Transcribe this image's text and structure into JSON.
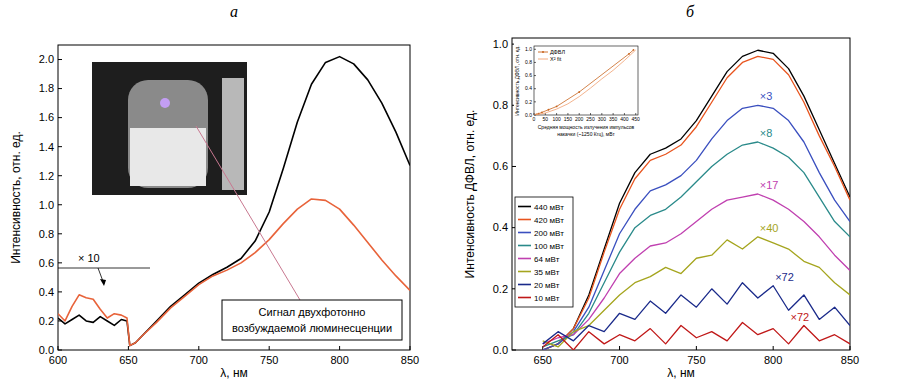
{
  "chart_data": [
    {
      "type": "line",
      "title": "а",
      "x_label": "λ, нм",
      "y_label": "Интенсивность, отн. ед.",
      "x": [
        600,
        605,
        610,
        615,
        620,
        625,
        630,
        635,
        640,
        645,
        649,
        651,
        655,
        660,
        670,
        680,
        690,
        700,
        710,
        720,
        730,
        740,
        750,
        760,
        770,
        780,
        790,
        800,
        810,
        820,
        830,
        840,
        850
      ],
      "series": [
        {
          "color": "#000000",
          "values": [
            0.22,
            0.18,
            0.21,
            0.24,
            0.2,
            0.19,
            0.23,
            0.2,
            0.17,
            0.21,
            0.2,
            0.03,
            0.05,
            0.1,
            0.2,
            0.3,
            0.38,
            0.46,
            0.52,
            0.57,
            0.63,
            0.75,
            0.95,
            1.25,
            1.57,
            1.83,
            1.98,
            2.02,
            1.97,
            1.86,
            1.7,
            1.5,
            1.27
          ]
        },
        {
          "color": "#e8633a",
          "values": [
            0.25,
            0.2,
            0.3,
            0.38,
            0.36,
            0.35,
            0.28,
            0.22,
            0.25,
            0.24,
            0.22,
            0.03,
            0.05,
            0.1,
            0.19,
            0.29,
            0.37,
            0.45,
            0.51,
            0.55,
            0.6,
            0.67,
            0.76,
            0.87,
            0.97,
            1.04,
            1.03,
            0.97,
            0.86,
            0.74,
            0.62,
            0.51,
            0.41
          ]
        }
      ],
      "xlim": [
        600,
        850
      ],
      "xticks": [
        600,
        650,
        700,
        750,
        800,
        850
      ],
      "ylim": [
        0,
        2.1
      ],
      "yticks": [
        {
          "value": 0,
          "label": "0.0"
        },
        0.2,
        0.4,
        0.6,
        0.8,
        {
          "value": 1,
          "label": "1.0"
        },
        1.2,
        1.4,
        1.6,
        1.8,
        {
          "value": 2,
          "label": "2.0"
        }
      ],
      "annotations": [
        {
          "text": "× 10"
        },
        {
          "text": "Сигнал двухфотонно возбуждаемой люминесценции"
        }
      ]
    },
    {
      "type": "line",
      "title": "б",
      "x_label": "λ, нм",
      "y_label": "Интенсивность ДФВЛ, отн. ед.",
      "x": [
        650,
        660,
        670,
        680,
        690,
        700,
        710,
        720,
        730,
        740,
        750,
        760,
        770,
        780,
        790,
        800,
        810,
        820,
        830,
        840,
        850
      ],
      "series": [
        {
          "name": "440 мВт",
          "color": "#000000",
          "values": [
            0.0,
            0.02,
            0.07,
            0.18,
            0.33,
            0.48,
            0.58,
            0.64,
            0.66,
            0.69,
            0.75,
            0.83,
            0.91,
            0.96,
            0.98,
            0.97,
            0.92,
            0.83,
            0.72,
            0.61,
            0.5
          ]
        },
        {
          "name": "420 мВт",
          "color": "#e8541e",
          "values": [
            0.0,
            0.02,
            0.07,
            0.17,
            0.32,
            0.46,
            0.56,
            0.62,
            0.64,
            0.67,
            0.73,
            0.81,
            0.89,
            0.94,
            0.96,
            0.95,
            0.9,
            0.81,
            0.7,
            0.6,
            0.49
          ]
        },
        {
          "name": "200 мВт",
          "color": "#3a4fbf",
          "annotation": "×3",
          "values": [
            0.0,
            0.02,
            0.06,
            0.14,
            0.26,
            0.38,
            0.46,
            0.52,
            0.54,
            0.57,
            0.62,
            0.69,
            0.75,
            0.79,
            0.8,
            0.79,
            0.75,
            0.68,
            0.58,
            0.49,
            0.42
          ]
        },
        {
          "name": "100 мВт",
          "color": "#2a8a8a",
          "annotation": "×8",
          "values": [
            0.01,
            0.03,
            0.05,
            0.12,
            0.22,
            0.32,
            0.4,
            0.44,
            0.46,
            0.5,
            0.55,
            0.6,
            0.64,
            0.67,
            0.68,
            0.66,
            0.63,
            0.58,
            0.5,
            0.42,
            0.37
          ]
        },
        {
          "name": "64 мВт",
          "color": "#c040b0",
          "annotation": "×17",
          "values": [
            0.02,
            0.04,
            0.05,
            0.1,
            0.17,
            0.25,
            0.3,
            0.34,
            0.35,
            0.38,
            0.42,
            0.46,
            0.49,
            0.5,
            0.51,
            0.49,
            0.46,
            0.42,
            0.37,
            0.31,
            0.26
          ]
        },
        {
          "name": "35 мВт",
          "color": "#a5a51e",
          "annotation": "×40",
          "values": [
            0.03,
            0.01,
            0.06,
            0.08,
            0.13,
            0.18,
            0.22,
            0.24,
            0.27,
            0.25,
            0.3,
            0.31,
            0.36,
            0.33,
            0.37,
            0.35,
            0.33,
            0.29,
            0.27,
            0.22,
            0.18
          ]
        },
        {
          "name": "20 мВт",
          "color": "#1a2a8a",
          "annotation": "×72",
          "values": [
            0.02,
            0.06,
            0.03,
            0.08,
            0.06,
            0.12,
            0.1,
            0.16,
            0.12,
            0.18,
            0.14,
            0.2,
            0.15,
            0.22,
            0.17,
            0.21,
            0.13,
            0.18,
            0.1,
            0.14,
            0.08
          ]
        },
        {
          "name": "10 мВт",
          "color": "#c01818",
          "annotation": "×72",
          "values": [
            0.01,
            0.05,
            0.0,
            0.06,
            0.02,
            0.05,
            0.03,
            0.07,
            0.02,
            0.08,
            0.04,
            0.06,
            0.03,
            0.09,
            0.05,
            0.07,
            0.02,
            0.08,
            0.03,
            0.05,
            0.02
          ]
        }
      ],
      "xlim": [
        630,
        850
      ],
      "xticks": [
        650,
        700,
        750,
        800,
        850
      ],
      "ylim": [
        0,
        1.02
      ],
      "yticks": [
        {
          "value": 0,
          "label": "0.0"
        },
        0.2,
        0.4,
        0.6,
        0.8,
        {
          "value": 1,
          "label": "1.0"
        }
      ],
      "legend": "lower left",
      "inset": {
        "type": "line",
        "x_label": "Средняя мощность излучения импульсов накачки (~1250 Кгц), мВт",
        "y_label": "Интенсивность ДФВЛ, отн. ед.",
        "series": [
          {
            "name": "ДФВЛ",
            "color": "#c8641e",
            "marker": "circle",
            "x": [
              10,
              20,
              35,
              64,
              100,
              200,
              420,
              440
            ],
            "values": [
              0.01,
              0.02,
              0.04,
              0.08,
              0.13,
              0.35,
              0.93,
              0.99
            ]
          },
          {
            "name": "X² fit",
            "color": "#f0a070",
            "x": [
              0,
              50,
              100,
              150,
              200,
              250,
              300,
              350,
              400,
              450
            ],
            "values": [
              0,
              0.03,
              0.09,
              0.17,
              0.28,
              0.41,
              0.55,
              0.68,
              0.83,
              0.99
            ]
          }
        ],
        "xlim": [
          0,
          460
        ],
        "xticks": [
          0,
          50,
          100,
          150,
          200,
          250,
          300,
          350,
          400,
          450
        ],
        "ylim": [
          0,
          1.05
        ],
        "yticks": [
          {
            "value": 0,
            "label": "0.0"
          },
          0.2,
          0.4,
          0.6,
          0.8,
          {
            "value": 1,
            "label": "1.0"
          }
        ],
        "legend": "upper left"
      }
    }
  ]
}
